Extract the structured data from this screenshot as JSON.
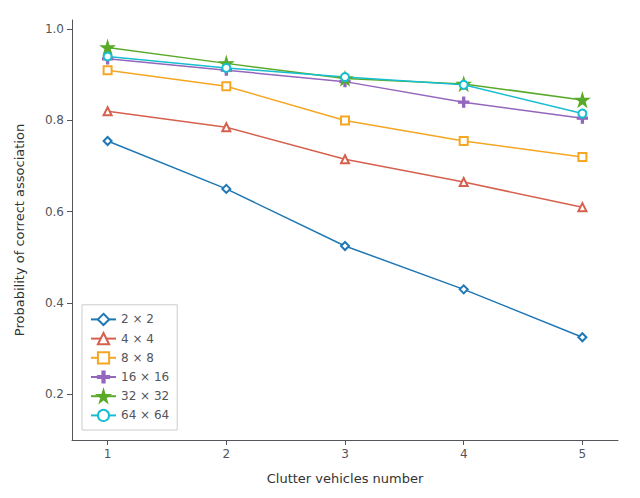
{
  "chart_data": {
    "type": "line",
    "x": [
      1,
      2,
      3,
      4,
      5
    ],
    "series": [
      {
        "name": "2 × 2",
        "color": "#1f77b4",
        "marker": "diamond",
        "values": [
          0.755,
          0.65,
          0.525,
          0.43,
          0.325
        ]
      },
      {
        "name": "4 × 4",
        "color": "#d6604d",
        "marker": "triangle",
        "values": [
          0.82,
          0.785,
          0.715,
          0.665,
          0.61
        ]
      },
      {
        "name": "8 × 8",
        "color": "#f5a623",
        "marker": "square",
        "values": [
          0.91,
          0.875,
          0.8,
          0.755,
          0.72
        ]
      },
      {
        "name": "16 × 16",
        "color": "#9467bd",
        "marker": "plus",
        "values": [
          0.935,
          0.91,
          0.885,
          0.84,
          0.805
        ]
      },
      {
        "name": "32 × 32",
        "color": "#5aaa2a",
        "marker": "star",
        "values": [
          0.96,
          0.925,
          0.892,
          0.88,
          0.845
        ]
      },
      {
        "name": "64 × 64",
        "color": "#17becf",
        "marker": "circle",
        "values": [
          0.94,
          0.915,
          0.895,
          0.878,
          0.815
        ]
      }
    ],
    "xlabel": "Clutter vehicles number",
    "ylabel": "Probability of correct association",
    "xlim": [
      0.7,
      5.3
    ],
    "ylim": [
      0.1,
      1.02
    ],
    "xticks": [
      1,
      2,
      3,
      4,
      5
    ],
    "yticks": [
      0.2,
      0.4,
      0.6,
      0.8,
      {
        "value": 1.0,
        "label": "1.0"
      }
    ],
    "grid": false,
    "legend": "lower left"
  }
}
